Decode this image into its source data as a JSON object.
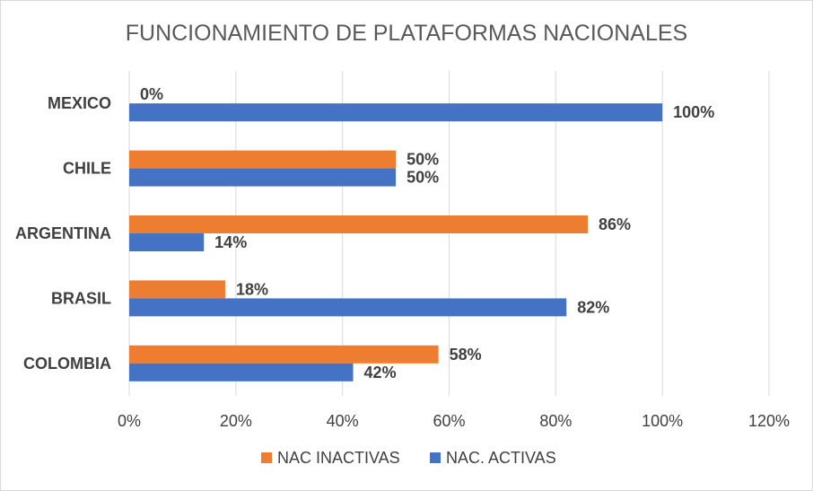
{
  "chart_data": {
    "type": "bar",
    "orientation": "horizontal",
    "title": "FUNCIONAMIENTO DE PLATAFORMAS  NACIONALES",
    "categories": [
      "MEXICO",
      "CHILE",
      "ARGENTINA",
      "BRASIL",
      "COLOMBIA"
    ],
    "series": [
      {
        "name": "NAC INACTIVAS",
        "color": "#ed7d31",
        "values": [
          0,
          50,
          86,
          18,
          58
        ],
        "labels": [
          "0%",
          "50%",
          "86%",
          "18%",
          "58%"
        ]
      },
      {
        "name": "NAC. ACTIVAS",
        "color": "#4472c4",
        "values": [
          100,
          50,
          14,
          82,
          42
        ],
        "labels": [
          "100%",
          "50%",
          "14%",
          "82%",
          "42%"
        ]
      }
    ],
    "xlim": [
      0,
      120
    ],
    "xticks": [
      0,
      20,
      40,
      60,
      80,
      100,
      120
    ],
    "xtick_labels": [
      "0%",
      "20%",
      "40%",
      "60%",
      "80%",
      "100%",
      "120%"
    ],
    "grid": true,
    "legend_position": "bottom"
  }
}
